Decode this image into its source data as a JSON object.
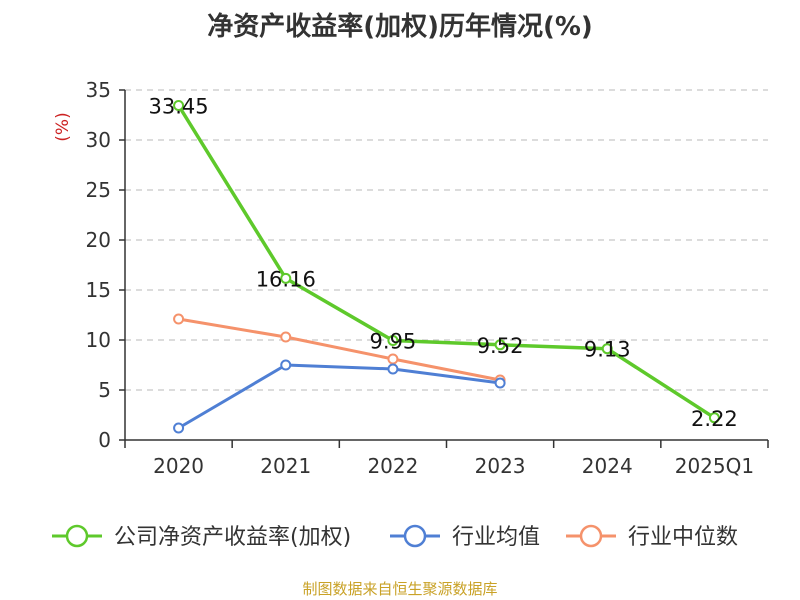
{
  "chart_data": {
    "type": "line",
    "title": "净资产收益率(加权)历年情况(%)",
    "ylabel": "(%)",
    "xlabel": "",
    "categories": [
      "2020",
      "2021",
      "2022",
      "2023",
      "2024",
      "2025Q1"
    ],
    "ylim": [
      0,
      35
    ],
    "yticks": [
      0,
      5,
      10,
      15,
      20,
      25,
      30,
      35
    ],
    "grid": "horizontal dashed",
    "legend_position": "bottom",
    "series": [
      {
        "name": "公司净资产收益率(加权)",
        "color": "#5ec92b",
        "values": [
          33.45,
          16.16,
          9.95,
          9.52,
          9.13,
          2.22
        ],
        "labels": [
          "33.45",
          "16.16",
          "9.95",
          "9.52",
          "9.13",
          "2.22"
        ]
      },
      {
        "name": "行业均值",
        "color": "#4f7fd4",
        "values": [
          1.2,
          7.5,
          7.1,
          5.7,
          null,
          null
        ]
      },
      {
        "name": "行业中位数",
        "color": "#f5926b",
        "values": [
          12.1,
          10.3,
          8.1,
          6.0,
          null,
          null
        ]
      }
    ],
    "ylabel_color": "#cc2222"
  },
  "source": "制图数据来自恒生聚源数据库"
}
